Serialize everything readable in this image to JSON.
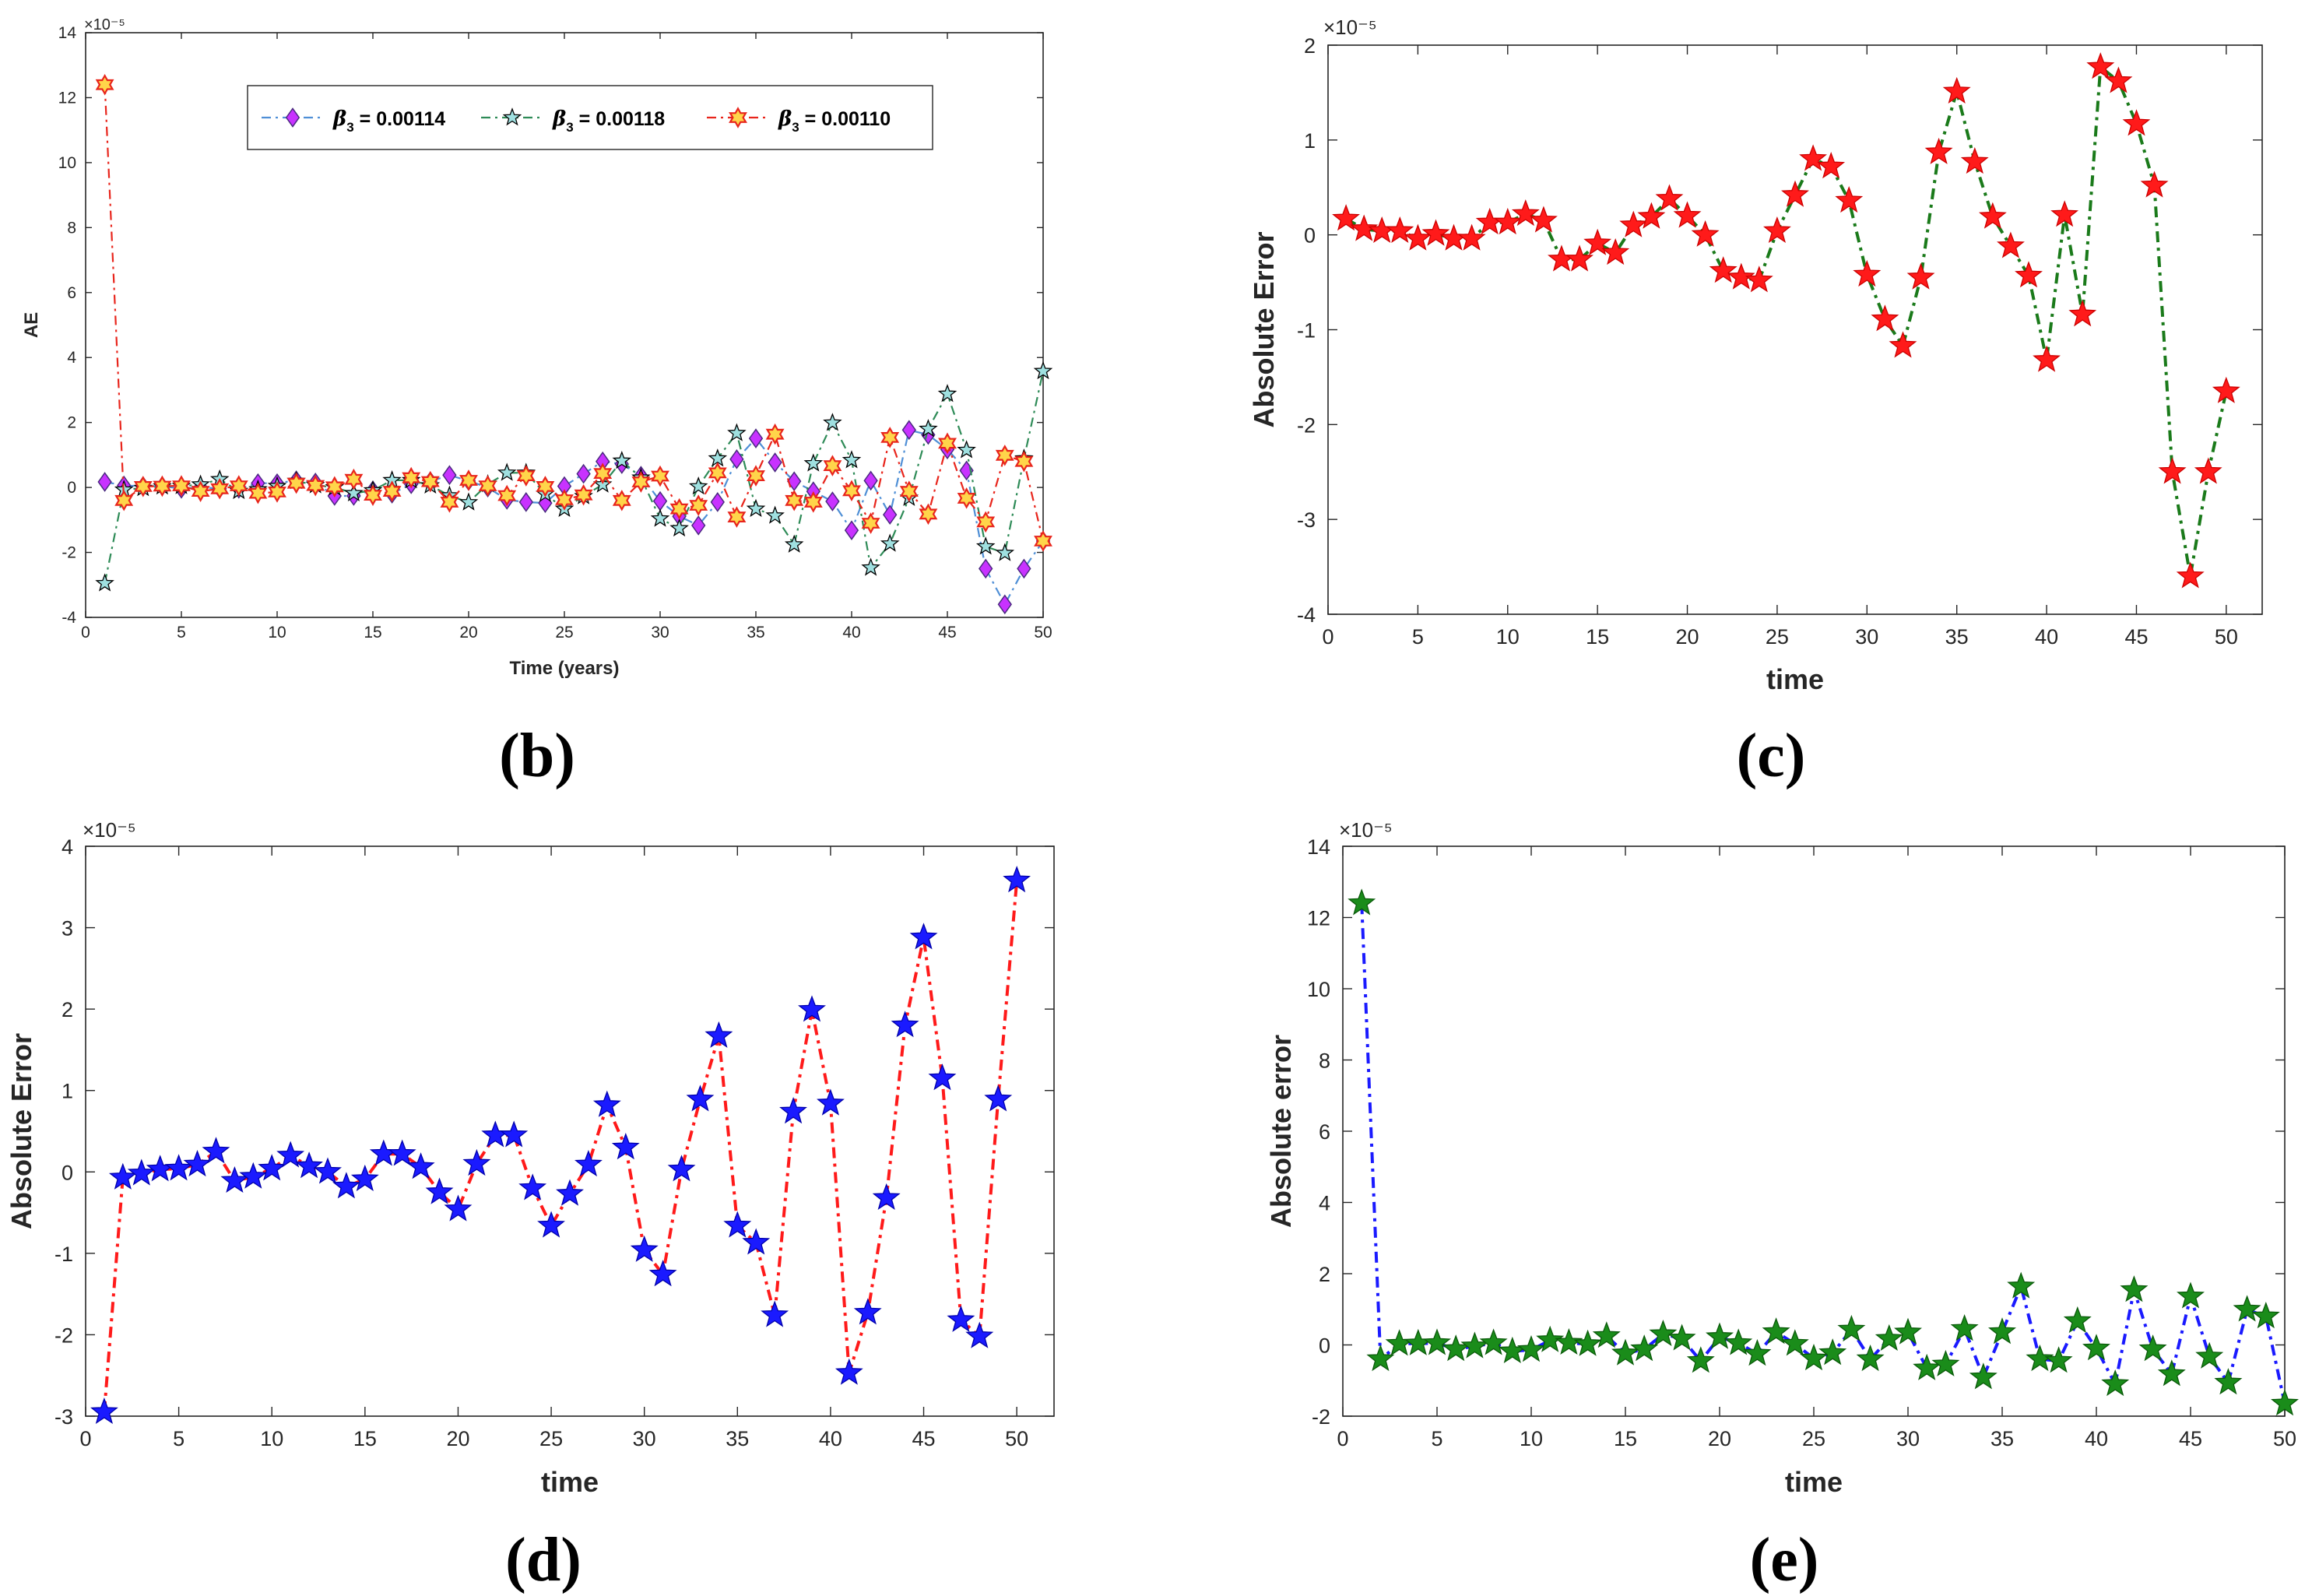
{
  "chart_data": [
    {
      "panel": "(b)",
      "type": "line",
      "title": "",
      "xlabel": "Time (years)",
      "ylabel": "AE",
      "exponent": "×10⁻⁵",
      "xlim": [
        0,
        50
      ],
      "ylim": [
        -4,
        14
      ],
      "xticks": [
        0,
        5,
        10,
        15,
        20,
        25,
        30,
        35,
        40,
        45,
        50
      ],
      "yticks": [
        -4,
        -2,
        0,
        2,
        4,
        6,
        8,
        10,
        12,
        14
      ],
      "legend_position": "top-center",
      "x": [
        1,
        2,
        3,
        4,
        5,
        6,
        7,
        8,
        9,
        10,
        11,
        12,
        13,
        14,
        15,
        16,
        17,
        18,
        19,
        20,
        21,
        22,
        23,
        24,
        25,
        26,
        27,
        28,
        29,
        30,
        31,
        32,
        33,
        34,
        35,
        36,
        37,
        38,
        39,
        40,
        41,
        42,
        43,
        44,
        45,
        46,
        47,
        48,
        49,
        50
      ],
      "series": [
        {
          "name": "β3 = 0.00114",
          "legend_prefix": "β",
          "legend_sub": "3",
          "legend_value": " = 0.00114",
          "line_color": "#4f8fd6",
          "marker": "diamond",
          "marker_fill": "#c832ff",
          "marker_stroke": "#4a2a80",
          "dash": "12,6,3,6",
          "values": [
            0.17,
            0.06,
            0.04,
            0.04,
            -0.04,
            0.01,
            -0.04,
            -0.04,
            0.13,
            0.13,
            0.22,
            0.15,
            -0.26,
            -0.26,
            -0.09,
            -0.19,
            0.1,
            0.19,
            0.38,
            0.2,
            0.0,
            -0.38,
            -0.45,
            -0.48,
            0.04,
            0.42,
            0.8,
            0.72,
            0.36,
            -0.42,
            -0.89,
            -1.17,
            -0.45,
            0.87,
            1.51,
            0.77,
            0.19,
            -0.12,
            -0.43,
            -1.32,
            0.21,
            -0.84,
            1.77,
            1.62,
            1.17,
            0.52,
            -2.5,
            -3.6,
            -2.5,
            -1.65
          ]
        },
        {
          "name": "β3 = 0.00118",
          "legend_prefix": "β",
          "legend_sub": "3",
          "legend_value": " = 0.00118",
          "line_color": "#2e8b57",
          "marker": "star",
          "marker_fill": "#9fe0e0",
          "marker_stroke": "#000000",
          "dash": "12,6,3,6",
          "values": [
            -2.95,
            -0.07,
            -0.02,
            0.03,
            0.04,
            0.09,
            0.25,
            -0.11,
            -0.06,
            0.04,
            0.2,
            0.07,
            0.0,
            -0.18,
            -0.09,
            0.22,
            0.22,
            0.06,
            -0.25,
            -0.46,
            0.1,
            0.45,
            0.45,
            -0.2,
            -0.66,
            -0.27,
            0.09,
            0.82,
            0.3,
            -0.96,
            -1.26,
            0.03,
            0.89,
            1.67,
            -0.66,
            -0.87,
            -1.76,
            0.74,
            1.99,
            0.84,
            -2.47,
            -1.73,
            -0.32,
            1.8,
            2.88,
            1.15,
            -1.82,
            -2.02,
            0.89,
            3.58
          ]
        },
        {
          "name": "β3 = 0.00110",
          "legend_prefix": "β",
          "legend_sub": "3",
          "legend_value": " = 0.00110",
          "line_color": "#e8251c",
          "marker": "hexstar",
          "marker_fill": "#ffd54a",
          "marker_stroke": "#e8251c",
          "dash": "12,6,3,6",
          "values": [
            12.4,
            -0.4,
            0.03,
            0.04,
            0.05,
            -0.12,
            -0.04,
            0.05,
            -0.18,
            -0.14,
            0.13,
            0.06,
            0.02,
            0.25,
            -0.24,
            -0.12,
            0.3,
            0.18,
            -0.45,
            0.22,
            0.05,
            -0.25,
            0.36,
            0.03,
            -0.38,
            -0.23,
            0.43,
            -0.4,
            0.17,
            0.35,
            -0.66,
            -0.55,
            0.45,
            -0.91,
            0.36,
            1.64,
            -0.4,
            -0.45,
            0.67,
            -0.1,
            -1.1,
            1.54,
            -0.12,
            -0.82,
            1.36,
            -0.33,
            -1.06,
            0.99,
            0.8,
            -1.65
          ]
        }
      ]
    },
    {
      "panel": "(c)",
      "type": "line",
      "title": "",
      "xlabel": "time",
      "ylabel": "Absolute Error",
      "exponent": "×10⁻⁵",
      "xlim": [
        0,
        52
      ],
      "ylim": [
        -4,
        2
      ],
      "xticks": [
        0,
        5,
        10,
        15,
        20,
        25,
        30,
        35,
        40,
        45,
        50
      ],
      "yticks": [
        -4,
        -3,
        -2,
        -1,
        0,
        1,
        2
      ],
      "series": [
        {
          "name": "β3 = 0.00114",
          "line_color": "#1a7a1a",
          "marker": "star",
          "marker_fill": "#ff1a1a",
          "marker_stroke": "#cc0000",
          "dash": "14,7,4,7",
          "x": [
            1,
            2,
            3,
            4,
            5,
            6,
            7,
            8,
            9,
            10,
            11,
            12,
            13,
            14,
            15,
            16,
            17,
            18,
            19,
            20,
            21,
            22,
            23,
            24,
            25,
            26,
            27,
            28,
            29,
            30,
            31,
            32,
            33,
            34,
            35,
            36,
            37,
            38,
            39,
            40,
            41,
            42,
            43,
            44,
            45,
            46,
            47,
            48,
            49,
            50
          ],
          "values": [
            0.17,
            0.06,
            0.04,
            0.04,
            -0.04,
            0.01,
            -0.04,
            -0.04,
            0.13,
            0.13,
            0.22,
            0.15,
            -0.26,
            -0.26,
            -0.09,
            -0.19,
            0.1,
            0.19,
            0.38,
            0.2,
            0.0,
            -0.38,
            -0.45,
            -0.48,
            0.04,
            0.42,
            0.8,
            0.72,
            0.36,
            -0.42,
            -0.89,
            -1.17,
            -0.45,
            0.87,
            1.51,
            0.77,
            0.19,
            -0.12,
            -0.43,
            -1.32,
            0.21,
            -0.84,
            1.77,
            1.62,
            1.17,
            0.52,
            -2.5,
            -3.6,
            -2.5,
            -1.65
          ]
        }
      ]
    },
    {
      "panel": "(d)",
      "type": "line",
      "title": "",
      "xlabel": "time",
      "ylabel": "Absolute Error",
      "exponent": "×10⁻⁵",
      "xlim": [
        0,
        52
      ],
      "ylim": [
        -3,
        4
      ],
      "xticks": [
        0,
        5,
        10,
        15,
        20,
        25,
        30,
        35,
        40,
        45,
        50
      ],
      "yticks": [
        -3,
        -2,
        -1,
        0,
        1,
        2,
        3,
        4
      ],
      "series": [
        {
          "name": "β3 = 0.00118",
          "line_color": "#ff1a1a",
          "marker": "star",
          "marker_fill": "#1a1aff",
          "marker_stroke": "#0000aa",
          "dash": "14,7,4,7",
          "x": [
            1,
            2,
            3,
            4,
            5,
            6,
            7,
            8,
            9,
            10,
            11,
            12,
            13,
            14,
            15,
            16,
            17,
            18,
            19,
            20,
            21,
            22,
            23,
            24,
            25,
            26,
            27,
            28,
            29,
            30,
            31,
            32,
            33,
            34,
            35,
            36,
            37,
            38,
            39,
            40,
            41,
            42,
            43,
            44,
            45,
            46,
            47,
            48,
            49,
            50
          ],
          "values": [
            -2.95,
            -0.07,
            -0.02,
            0.03,
            0.04,
            0.09,
            0.25,
            -0.11,
            -0.06,
            0.04,
            0.2,
            0.07,
            0.0,
            -0.18,
            -0.09,
            0.22,
            0.22,
            0.06,
            -0.25,
            -0.46,
            0.1,
            0.45,
            0.45,
            -0.2,
            -0.66,
            -0.27,
            0.09,
            0.82,
            0.3,
            -0.96,
            -1.26,
            0.03,
            0.89,
            1.67,
            -0.66,
            -0.87,
            -1.76,
            0.74,
            1.99,
            0.84,
            -2.47,
            -1.73,
            -0.32,
            1.8,
            2.88,
            1.15,
            -1.82,
            -2.02,
            0.89,
            3.58
          ]
        }
      ]
    },
    {
      "panel": "(e)",
      "type": "line",
      "title": "",
      "xlabel": "time",
      "ylabel": "Absolute error",
      "exponent": "×10⁻⁵",
      "xlim": [
        0,
        50
      ],
      "ylim": [
        -2,
        14
      ],
      "xticks": [
        0,
        5,
        10,
        15,
        20,
        25,
        30,
        35,
        40,
        45,
        50
      ],
      "yticks": [
        -2,
        0,
        2,
        4,
        6,
        8,
        10,
        12,
        14
      ],
      "series": [
        {
          "name": "β3 = 0.00110",
          "line_color": "#1a1aff",
          "marker": "star",
          "marker_fill": "#1a8c1a",
          "marker_stroke": "#0a5a0a",
          "dash": "14,7,4,7",
          "x": [
            1,
            2,
            3,
            4,
            5,
            6,
            7,
            8,
            9,
            10,
            11,
            12,
            13,
            14,
            15,
            16,
            17,
            18,
            19,
            20,
            21,
            22,
            23,
            24,
            25,
            26,
            27,
            28,
            29,
            30,
            31,
            32,
            33,
            34,
            35,
            36,
            37,
            38,
            39,
            40,
            41,
            42,
            43,
            44,
            45,
            46,
            47,
            48,
            49,
            50
          ],
          "values": [
            12.4,
            -0.4,
            0.03,
            0.04,
            0.05,
            -0.12,
            -0.04,
            0.05,
            -0.18,
            -0.14,
            0.13,
            0.06,
            0.02,
            0.25,
            -0.24,
            -0.12,
            0.3,
            0.18,
            -0.45,
            0.22,
            0.05,
            -0.25,
            0.36,
            0.03,
            -0.38,
            -0.23,
            0.43,
            -0.4,
            0.17,
            0.35,
            -0.66,
            -0.55,
            0.45,
            -0.91,
            0.36,
            1.64,
            -0.4,
            -0.45,
            0.67,
            -0.1,
            -1.1,
            1.54,
            -0.12,
            -0.82,
            1.36,
            -0.33,
            -1.06,
            0.99,
            0.8,
            -1.65
          ]
        }
      ]
    }
  ],
  "panel_labels": {
    "b": "(b)",
    "c": "(c)",
    "d": "(d)",
    "e": "(e)"
  }
}
